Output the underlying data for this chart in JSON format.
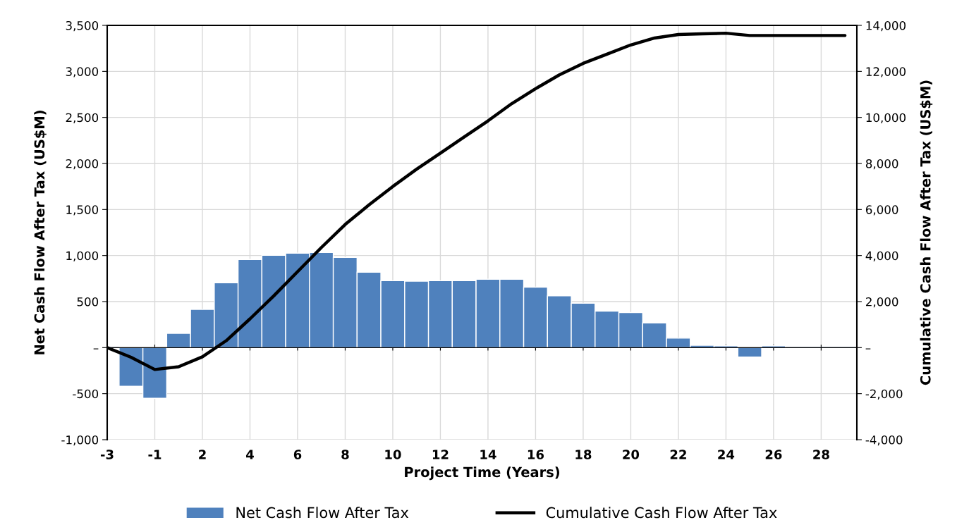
{
  "chart_data": {
    "type": "bar",
    "xlabel": "Project Time (Years)",
    "ylabel": "Net Cash Flow After Tax (US$M)",
    "y2label": "Cumulative Cash Flow After Tax (US$M)",
    "categories": [
      "-3",
      null,
      "-1",
      null,
      "2",
      null,
      "4",
      null,
      "6",
      null,
      "8",
      null,
      "10",
      null,
      "12",
      null,
      "14",
      null,
      "16",
      null,
      "18",
      null,
      "20",
      null,
      "22",
      null,
      "24",
      null,
      "26",
      null,
      "28",
      null
    ],
    "series": [
      {
        "name": "Net Cash Flow After Tax",
        "color": "#4f81bd",
        "values": [
          0,
          -420,
          -550,
          155,
          415,
          705,
          957,
          1003,
          1026,
          1034,
          980,
          820,
          727,
          722,
          727,
          727,
          743,
          743,
          657,
          562,
          482,
          397,
          381,
          268,
          103,
          26,
          20,
          -103,
          20,
          0,
          0,
          0
        ]
      },
      {
        "name": "Cumulative Cash Flow After Tax",
        "type": "line",
        "axis": "y2",
        "color": "#000000",
        "values": [
          0,
          -420,
          -950,
          -830,
          -400,
          300,
          1250,
          2250,
          3300,
          4350,
          5350,
          6200,
          7000,
          7750,
          8450,
          9150,
          9850,
          10600,
          11250,
          11850,
          12350,
          12750,
          13150,
          13450,
          13600,
          13630,
          13660,
          13560,
          13560,
          13560,
          13560,
          13560
        ]
      }
    ],
    "ylim": [
      -1000,
      3500
    ],
    "yticks": [
      {
        "value": -1000,
        "label": "-1,000"
      },
      -500,
      {
        "value": 0,
        "label": "–"
      },
      500,
      {
        "value": 1000,
        "label": "1,000"
      },
      {
        "value": 1500,
        "label": "1,500"
      },
      {
        "value": 2000,
        "label": "2,000"
      },
      {
        "value": 2500,
        "label": "2,500"
      },
      {
        "value": 3000,
        "label": "3,000"
      },
      {
        "value": 3500,
        "label": "3,500"
      }
    ],
    "y2lim": [
      -4000,
      14000
    ],
    "y2ticks": [
      {
        "value": -4000,
        "label": "-4,000"
      },
      {
        "value": -2000,
        "label": "-2,000"
      },
      {
        "value": 0,
        "label": "–"
      },
      {
        "value": 2000,
        "label": "2,000"
      },
      {
        "value": 4000,
        "label": "4,000"
      },
      {
        "value": 6000,
        "label": "6,000"
      },
      {
        "value": 8000,
        "label": "8,000"
      },
      {
        "value": 10000,
        "label": "10,000"
      },
      {
        "value": 12000,
        "label": "12,000"
      },
      {
        "value": 14000,
        "label": "14,000"
      }
    ],
    "grid": true,
    "legend": "bottom",
    "line_style": "solid",
    "marker": "none"
  }
}
